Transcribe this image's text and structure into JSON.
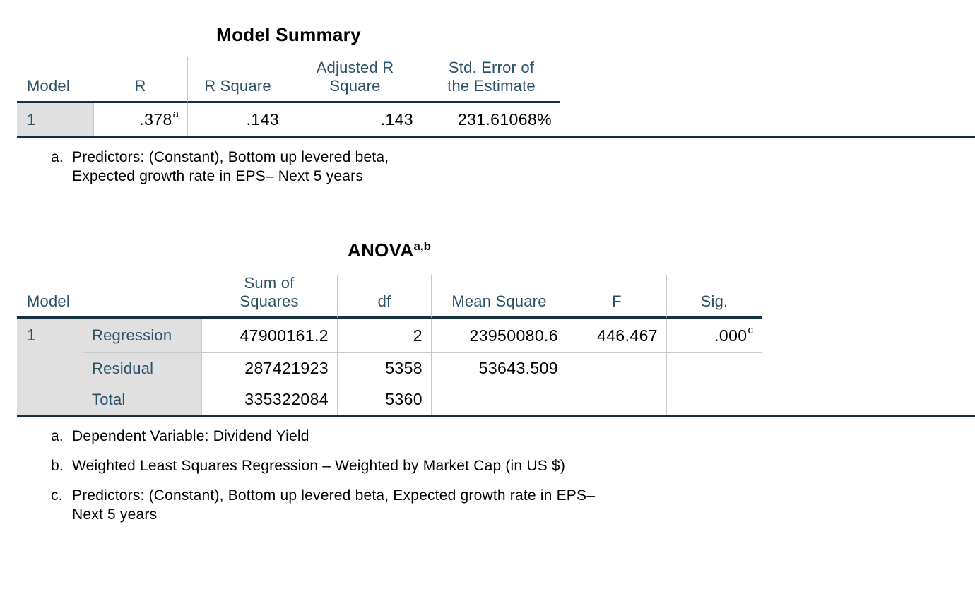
{
  "colors": {
    "header_text": "#2b5168",
    "thick_rule": "#15303e",
    "thin_rule": "#c9c9c9",
    "stub_background": "#e0e0e0"
  },
  "model_summary": {
    "title": "Model Summary",
    "headers": {
      "model": "Model",
      "r": "R",
      "r_square": "R Square",
      "adj_r_square": "Adjusted R\nSquare",
      "std_error": "Std. Error of\nthe Estimate"
    },
    "row": {
      "model": "1",
      "r_value": ".378",
      "r_sup": "a",
      "r_square": ".143",
      "adj_r_square": ".143",
      "std_error": "231.61068%"
    },
    "footnotes": [
      {
        "marker": "a.",
        "text": "Predictors: (Constant), Bottom up levered beta,\nExpected growth rate in EPS– Next 5 years"
      }
    ]
  },
  "anova": {
    "title": "ANOVA",
    "title_sup": "a,b",
    "headers": {
      "model": "Model",
      "sum_of_squares": "Sum of\nSquares",
      "df": "df",
      "mean_square": "Mean Square",
      "f": "F",
      "sig": "Sig."
    },
    "model_number": "1",
    "rows": [
      {
        "label": "Regression",
        "sum_of_squares": "47900161.2",
        "df": "2",
        "mean_square": "23950080.6",
        "f": "446.467",
        "sig": ".000",
        "sig_sup": "c"
      },
      {
        "label": "Residual",
        "sum_of_squares": "287421923",
        "df": "5358",
        "mean_square": "53643.509",
        "f": "",
        "sig": "",
        "sig_sup": ""
      },
      {
        "label": "Total",
        "sum_of_squares": "335322084",
        "df": "5360",
        "mean_square": "",
        "f": "",
        "sig": "",
        "sig_sup": ""
      }
    ],
    "footnotes": [
      {
        "marker": "a.",
        "text": "Dependent Variable: Dividend Yield"
      },
      {
        "marker": "b.",
        "text": "Weighted Least Squares Regression – Weighted by Market Cap (in US $)"
      },
      {
        "marker": "c.",
        "text": "Predictors: (Constant), Bottom up levered beta, Expected growth rate in EPS–\nNext 5 years"
      }
    ]
  }
}
